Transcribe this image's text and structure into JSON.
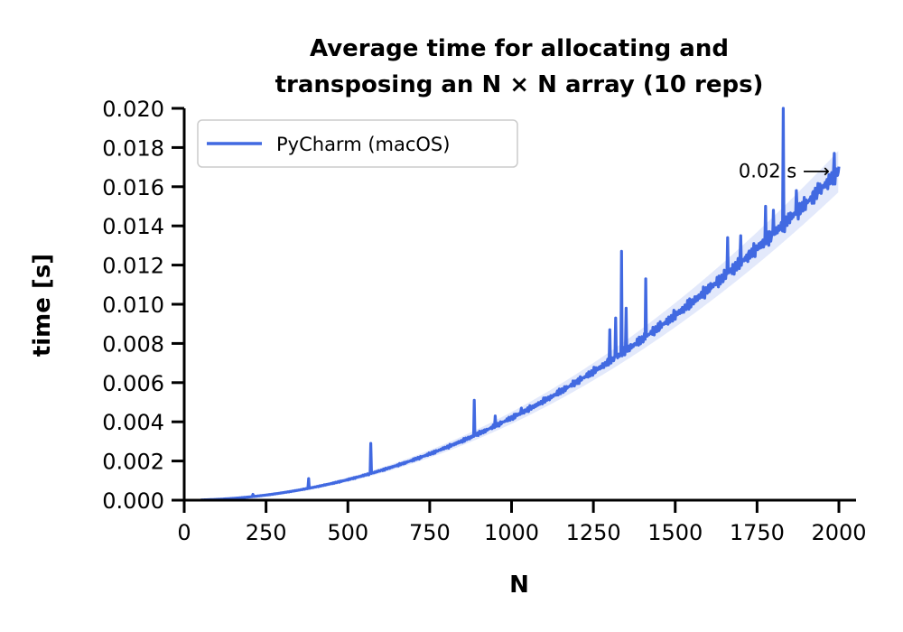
{
  "chart_data": {
    "type": "line",
    "title_line1": "Average time for allocating and",
    "title_line2": "transposing an N × N array (10 reps)",
    "xlabel": "N",
    "ylabel": "time [s]",
    "xlim": [
      0,
      2050
    ],
    "ylim": [
      0,
      0.02
    ],
    "xticks": [
      0,
      250,
      500,
      750,
      1000,
      1250,
      1500,
      1750,
      2000
    ],
    "xtick_labels": [
      "0",
      "250",
      "500",
      "750",
      "1000",
      "1250",
      "1500",
      "1750",
      "2000"
    ],
    "yticks": [
      0.0,
      0.002,
      0.004,
      0.006,
      0.008,
      0.01,
      0.012,
      0.014,
      0.016,
      0.018,
      0.02
    ],
    "ytick_labels": [
      "0.000",
      "0.002",
      "0.004",
      "0.006",
      "0.008",
      "0.010",
      "0.012",
      "0.014",
      "0.016",
      "0.018",
      "0.020"
    ],
    "grid": false,
    "legend_position": "top-left",
    "series": [
      {
        "name": "PyCharm (macOS)",
        "color": "#4169e1",
        "trend": {
          "x_start": 50,
          "x_end": 2000,
          "y_at_end": 0.0168,
          "form": "quadratic"
        },
        "spikes": [
          {
            "x": 210,
            "y": 0.0003
          },
          {
            "x": 380,
            "y": 0.0011
          },
          {
            "x": 570,
            "y": 0.0029
          },
          {
            "x": 660,
            "y": 0.0018
          },
          {
            "x": 885,
            "y": 0.0051
          },
          {
            "x": 950,
            "y": 0.0043
          },
          {
            "x": 1030,
            "y": 0.0047
          },
          {
            "x": 1110,
            "y": 0.0052
          },
          {
            "x": 1190,
            "y": 0.006
          },
          {
            "x": 1300,
            "y": 0.0087
          },
          {
            "x": 1318,
            "y": 0.0093
          },
          {
            "x": 1335,
            "y": 0.0127
          },
          {
            "x": 1350,
            "y": 0.0098
          },
          {
            "x": 1410,
            "y": 0.0113
          },
          {
            "x": 1660,
            "y": 0.0134
          },
          {
            "x": 1700,
            "y": 0.0135
          },
          {
            "x": 1775,
            "y": 0.015
          },
          {
            "x": 1800,
            "y": 0.0148
          },
          {
            "x": 1830,
            "y": 0.02
          },
          {
            "x": 1870,
            "y": 0.0158
          },
          {
            "x": 1940,
            "y": 0.016
          },
          {
            "x": 1985,
            "y": 0.0177
          }
        ]
      }
    ],
    "annotation": {
      "text": "0.02 s ⟶",
      "x": 2000,
      "y": 0.0168,
      "arrow": "right"
    }
  }
}
